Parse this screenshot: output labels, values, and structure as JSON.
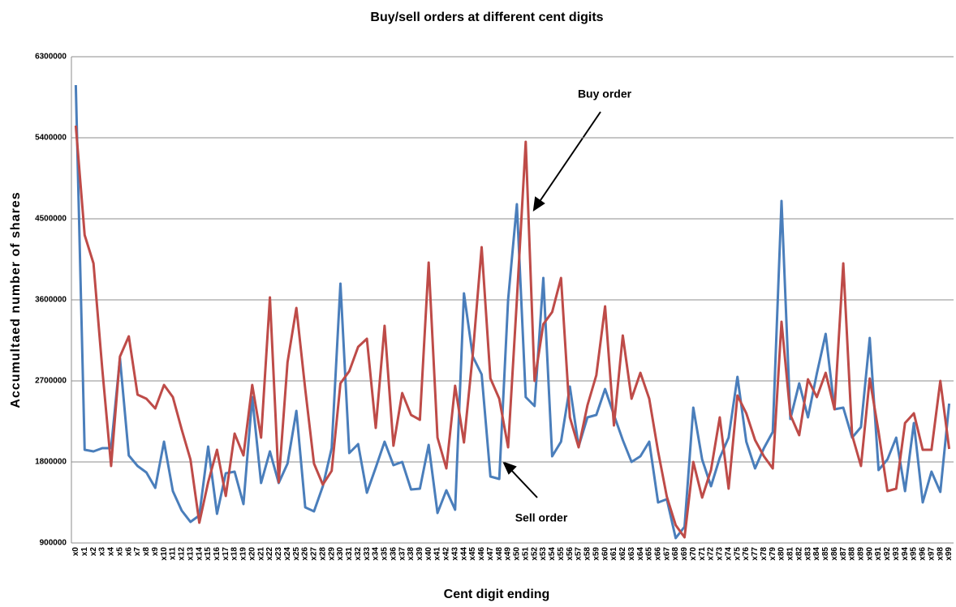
{
  "chart_data": {
    "type": "line",
    "title": "Buy/sell orders at different cent digits",
    "x_label": "Cent digit ending",
    "y_label": "Accumultaed number of shares",
    "categories": [
      "x0",
      "x1",
      "x2",
      "x3",
      "x4",
      "x5",
      "x6",
      "x7",
      "x8",
      "x9",
      "x10",
      "x11",
      "x12",
      "x13",
      "x14",
      "x15",
      "x16",
      "x17",
      "x18",
      "x19",
      "x20",
      "x21",
      "x22",
      "x23",
      "x24",
      "x25",
      "x26",
      "x27",
      "x28",
      "x29",
      "x30",
      "x31",
      "x32",
      "x33",
      "x34",
      "x35",
      "x36",
      "x37",
      "x38",
      "x39",
      "x40",
      "x41",
      "x42",
      "x43",
      "x44",
      "x45",
      "x46",
      "x47",
      "x48",
      "x49",
      "x50",
      "x51",
      "x52",
      "x53",
      "x54",
      "x55",
      "x56",
      "x57",
      "x58",
      "x59",
      "x60",
      "x61",
      "x62",
      "x63",
      "x64",
      "x65",
      "x66",
      "x67",
      "x68",
      "x69",
      "x70",
      "x71",
      "x72",
      "x73",
      "x74",
      "x75",
      "x76",
      "x77",
      "x78",
      "x79",
      "x80",
      "x81",
      "x82",
      "x83",
      "x84",
      "x85",
      "x86",
      "x87",
      "x88",
      "x89",
      "x90",
      "x91",
      "x92",
      "x93",
      "x94",
      "x95",
      "x96",
      "x97",
      "x98",
      "x99"
    ],
    "series": [
      {
        "name": "Sell order",
        "color": "#4a7ebb",
        "values": [
          5985000,
          1935000,
          1917000,
          1953000,
          1953000,
          2952000,
          1872000,
          1755000,
          1683000,
          1512000,
          2025000,
          1476000,
          1260000,
          1134000,
          1206000,
          1971000,
          1224000,
          1674000,
          1692000,
          1332000,
          2520000,
          1566000,
          1917000,
          1566000,
          1782000,
          2367000,
          1296000,
          1251000,
          1530000,
          1953000,
          3780000,
          1899000,
          1998000,
          1458000,
          1737000,
          2025000,
          1764000,
          1800000,
          1494000,
          1503000,
          1989000,
          1233000,
          1485000,
          1269000,
          3672000,
          2970000,
          2772000,
          1638000,
          1611000,
          3600000,
          4662000,
          2520000,
          2421000,
          3843000,
          1863000,
          2025000,
          2637000,
          1971000,
          2295000,
          2322000,
          2610000,
          2322000,
          2043000,
          1800000,
          1863000,
          2025000,
          1350000,
          1386000,
          954000,
          1080000,
          2403000,
          1827000,
          1530000,
          1845000,
          2070000,
          2745000,
          2025000,
          1728000,
          1953000,
          2133000,
          4698000,
          2277000,
          2673000,
          2295000,
          2781000,
          3222000,
          2385000,
          2403000,
          2070000,
          2187000,
          3177000,
          1710000,
          1827000,
          2070000,
          1476000,
          2232000,
          1350000,
          1692000,
          1467000,
          2448000
        ]
      },
      {
        "name": "Buy order",
        "color": "#be4b48",
        "values": [
          5535000,
          4320000,
          4005000,
          2835000,
          1755000,
          2970000,
          3195000,
          2547000,
          2502000,
          2394000,
          2655000,
          2520000,
          2160000,
          1827000,
          1125000,
          1575000,
          1935000,
          1422000,
          2115000,
          1872000,
          2655000,
          2070000,
          3627000,
          1575000,
          2907000,
          3510000,
          2610000,
          1782000,
          1548000,
          1701000,
          2673000,
          2808000,
          3078000,
          3168000,
          2178000,
          3312000,
          1980000,
          2565000,
          2322000,
          2268000,
          4014000,
          2070000,
          1728000,
          2646000,
          2016000,
          2997000,
          4185000,
          2727000,
          2502000,
          1962000,
          3600000,
          5355000,
          2700000,
          3330000,
          3465000,
          3843000,
          2295000,
          1962000,
          2430000,
          2763000,
          3528000,
          2205000,
          3204000,
          2502000,
          2790000,
          2502000,
          1917000,
          1413000,
          1098000,
          963000,
          1800000,
          1404000,
          1710000,
          2295000,
          1503000,
          2538000,
          2340000,
          2043000,
          1863000,
          1728000,
          3357000,
          2322000,
          2097000,
          2718000,
          2520000,
          2790000,
          2385000,
          4005000,
          2097000,
          1755000,
          2727000,
          2133000,
          1476000,
          1503000,
          2232000,
          2340000,
          1935000,
          1935000,
          2700000,
          1944000
        ]
      }
    ],
    "ylim": [
      900000,
      6300000
    ],
    "yticks": [
      900000,
      1800000,
      2700000,
      3600000,
      4500000,
      5400000,
      6300000
    ],
    "grid": true
  }
}
